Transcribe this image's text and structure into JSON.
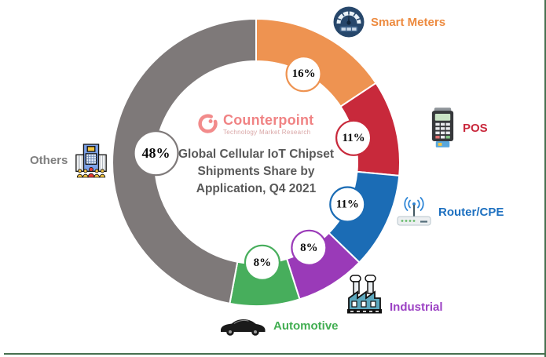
{
  "chart_data": {
    "type": "pie",
    "variant": "donut",
    "title": "Global Cellular IoT Chipset Shipments Share by Application, Q4 2021",
    "title_lines": [
      "Global Cellular IoT Chipset",
      "Shipments Share by",
      "Application, Q4 2021"
    ],
    "unit": "%",
    "start_angle": "12-o-clock",
    "direction": "clockwise",
    "legend_position": "around-ring",
    "segments": [
      {
        "label": "Smart Meters",
        "value": 16,
        "display": "16%",
        "color": "#EE9351",
        "label_color": "#ED8B40",
        "icon": "gauge-icon"
      },
      {
        "label": "POS",
        "value": 11,
        "display": "11%",
        "color": "#C8293B",
        "label_color": "#C9283C",
        "icon": "pos-terminal-icon"
      },
      {
        "label": "Router/CPE",
        "value": 11,
        "display": "11%",
        "color": "#1B6CB5",
        "label_color": "#1D70C0",
        "icon": "router-icon"
      },
      {
        "label": "Industrial",
        "value": 8,
        "display": "8%",
        "color": "#9A3AB8",
        "label_color": "#9C42C4",
        "icon": "factory-icon"
      },
      {
        "label": "Automotive",
        "value": 8,
        "display": "8%",
        "color": "#47AE5C",
        "label_color": "#42AE52",
        "icon": "car-icon"
      },
      {
        "label": "Others",
        "value": 48,
        "display": "48%",
        "color": "#7E7979",
        "label_color": "#7F7F7F",
        "icon": "building-icon"
      }
    ]
  },
  "logo": {
    "name": "Counterpoint",
    "tagline": "Technology Market Research",
    "color": "#F08384"
  }
}
